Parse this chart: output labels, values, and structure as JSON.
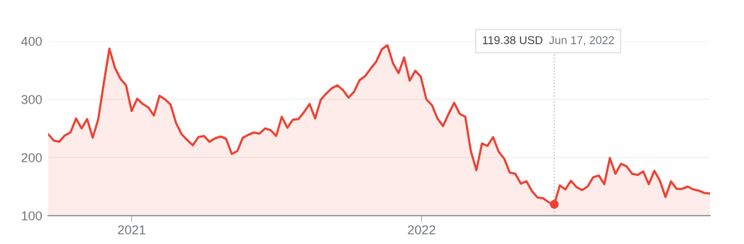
{
  "chart_data": {
    "type": "area",
    "x": [
      "2020-09-18",
      "2020-09-25",
      "2020-10-02",
      "2020-10-09",
      "2020-10-16",
      "2020-10-23",
      "2020-10-30",
      "2020-11-06",
      "2020-11-13",
      "2020-11-20",
      "2020-11-27",
      "2020-12-04",
      "2020-12-11",
      "2020-12-18",
      "2020-12-25",
      "2021-01-01",
      "2021-01-08",
      "2021-01-15",
      "2021-01-22",
      "2021-01-29",
      "2021-02-05",
      "2021-02-12",
      "2021-02-19",
      "2021-02-26",
      "2021-03-05",
      "2021-03-12",
      "2021-03-19",
      "2021-03-26",
      "2021-04-02",
      "2021-04-09",
      "2021-04-16",
      "2021-04-23",
      "2021-04-30",
      "2021-05-07",
      "2021-05-14",
      "2021-05-21",
      "2021-05-28",
      "2021-06-04",
      "2021-06-11",
      "2021-06-18",
      "2021-06-25",
      "2021-07-02",
      "2021-07-09",
      "2021-07-16",
      "2021-07-23",
      "2021-07-30",
      "2021-08-06",
      "2021-08-13",
      "2021-08-20",
      "2021-08-27",
      "2021-09-03",
      "2021-09-10",
      "2021-09-17",
      "2021-09-24",
      "2021-10-01",
      "2021-10-08",
      "2021-10-15",
      "2021-10-22",
      "2021-10-29",
      "2021-11-05",
      "2021-11-12",
      "2021-11-19",
      "2021-11-26",
      "2021-12-03",
      "2021-12-10",
      "2021-12-17",
      "2021-12-24",
      "2021-12-31",
      "2022-01-07",
      "2022-01-14",
      "2022-01-21",
      "2022-01-28",
      "2022-02-04",
      "2022-02-11",
      "2022-02-18",
      "2022-02-25",
      "2022-03-04",
      "2022-03-11",
      "2022-03-18",
      "2022-03-25",
      "2022-04-01",
      "2022-04-08",
      "2022-04-15",
      "2022-04-22",
      "2022-04-29",
      "2022-05-06",
      "2022-05-13",
      "2022-05-20",
      "2022-05-27",
      "2022-06-03",
      "2022-06-10",
      "2022-06-17",
      "2022-06-24",
      "2022-07-01",
      "2022-07-08",
      "2022-07-15",
      "2022-07-22",
      "2022-07-29",
      "2022-08-05",
      "2022-08-12",
      "2022-08-19",
      "2022-08-26",
      "2022-09-02",
      "2022-09-09",
      "2022-09-16",
      "2022-09-23",
      "2022-09-30",
      "2022-10-07",
      "2022-10-14",
      "2022-10-21",
      "2022-10-28",
      "2022-11-04",
      "2022-11-11",
      "2022-11-18",
      "2022-11-25",
      "2022-12-02",
      "2022-12-09",
      "2022-12-16",
      "2022-12-23",
      "2022-12-30"
    ],
    "series": [
      {
        "color": "#ea4335",
        "values": [
          240,
          229,
          227,
          238,
          243,
          267,
          250,
          266,
          234,
          266,
          328,
          387,
          354,
          335,
          324,
          280,
          301,
          292,
          286,
          272,
          306,
          300,
          291,
          259,
          240,
          230,
          221,
          235,
          237,
          227,
          233,
          236,
          232,
          206,
          211,
          234,
          239,
          243,
          241,
          250,
          247,
          237,
          270,
          251,
          265,
          266,
          278,
          292,
          267,
          299,
          310,
          319,
          324,
          316,
          303,
          313,
          333,
          340,
          353,
          365,
          386,
          393,
          362,
          345,
          372,
          332,
          349,
          339,
          300,
          290,
          267,
          254,
          275,
          294,
          275,
          270,
          211,
          178,
          224,
          220,
          235,
          210,
          198,
          174,
          172,
          155,
          159,
          142,
          131,
          130,
          123,
          119.38,
          152,
          145,
          160,
          149,
          144,
          150,
          166,
          169,
          154,
          199,
          172,
          189,
          185,
          172,
          170,
          176,
          154,
          177,
          160,
          132,
          159,
          146,
          146,
          150,
          145,
          143,
          139,
          138
        ]
      }
    ],
    "xlim": [
      "2020-09-18",
      "2022-12-30"
    ],
    "xticks": [
      {
        "value": "2021-01-01",
        "label": "2021"
      },
      {
        "value": "2022-01-01",
        "label": "2022"
      }
    ],
    "ylim": [
      100,
      400
    ],
    "yticks": [
      100,
      200,
      300,
      400
    ],
    "grid": "y",
    "ref_lines": [
      {
        "axis": "x",
        "value": "2022-06-17",
        "color": "#bdbdbd",
        "line_style": "dotted"
      }
    ],
    "annotations": [
      "119.38 USD",
      "Jun 17, 2022"
    ]
  }
}
